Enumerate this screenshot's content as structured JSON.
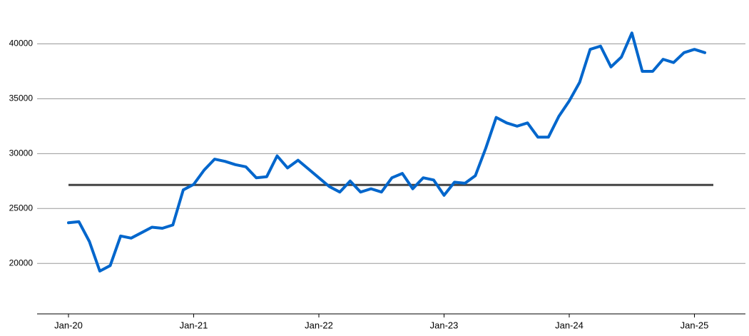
{
  "chart_data": {
    "type": "line",
    "categories": [
      "Jan-20",
      null,
      null,
      null,
      null,
      null,
      null,
      null,
      null,
      null,
      null,
      null,
      "Jan-21",
      null,
      null,
      null,
      null,
      null,
      null,
      null,
      null,
      null,
      null,
      null,
      "Jan-22",
      null,
      null,
      null,
      null,
      null,
      null,
      null,
      null,
      null,
      null,
      null,
      "Jan-23",
      null,
      null,
      null,
      null,
      null,
      null,
      null,
      null,
      null,
      null,
      null,
      "Jan-24",
      null,
      null,
      null,
      null,
      null,
      null,
      null,
      null,
      null,
      null,
      null,
      "Jan-25",
      null
    ],
    "series": [
      {
        "color": "#0066cc",
        "values": [
          23700,
          23800,
          22000,
          19300,
          19800,
          22500,
          22300,
          22800,
          23300,
          23200,
          23500,
          26700,
          27200,
          28500,
          29500,
          29300,
          29000,
          28800,
          27800,
          27900,
          29800,
          28700,
          29400,
          28600,
          27800,
          27000,
          26500,
          27500,
          26500,
          26800,
          26500,
          27800,
          28200,
          26800,
          27800,
          27600,
          26200,
          27400,
          27300,
          28000,
          30500,
          33300,
          32800,
          32500,
          32800,
          31500,
          31500,
          33400,
          34800,
          36500,
          39500,
          39800,
          37900,
          38800,
          41000,
          37500,
          37500,
          38600,
          38300,
          39200,
          39500,
          39200
        ]
      }
    ],
    "reference_line": {
      "value": 27150,
      "color": "#444444"
    },
    "ylim": [
      15400,
      44000
    ],
    "yticks": [
      20000,
      25000,
      30000,
      35000,
      40000
    ],
    "grid": true
  }
}
